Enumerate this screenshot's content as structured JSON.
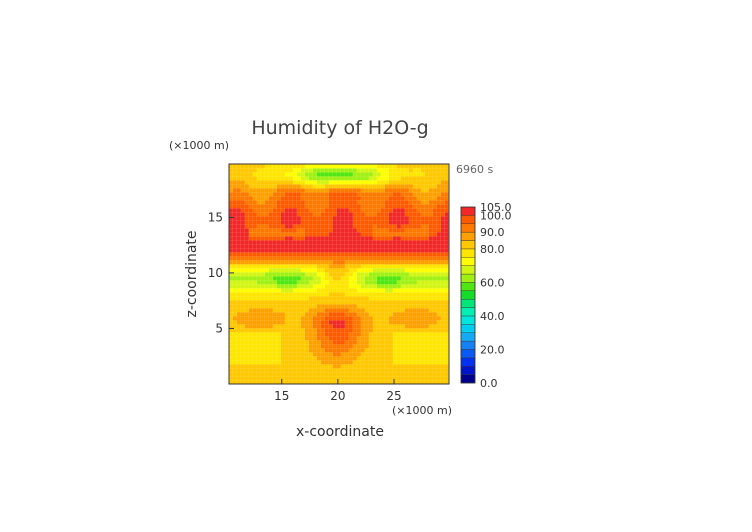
{
  "chart_data": {
    "type": "heatmap",
    "title": "Humidity of H2O-g",
    "time_label": "6960 s",
    "x_axis": {
      "label": "x-coordinate",
      "unit": "(×1000 m)",
      "range": [
        10.3,
        29.9
      ],
      "ticks": [
        15,
        20,
        25
      ],
      "tick_labels": [
        "15",
        "20",
        "25"
      ]
    },
    "y_axis": {
      "label": "z-coordinate",
      "unit": "(×1000 m)",
      "range": [
        0.0,
        19.8
      ],
      "ticks": [
        5,
        10,
        15
      ],
      "tick_labels": [
        "5",
        "10",
        "15"
      ]
    },
    "colorbar": {
      "levels": [
        0,
        5,
        10,
        15,
        20,
        25,
        30,
        35,
        40,
        45,
        50,
        55,
        60,
        65,
        70,
        75,
        80,
        85,
        90,
        95,
        100,
        105
      ],
      "labels": [
        "105.0",
        "100.0",
        "90.0",
        "80.0",
        "60.0",
        "40.0",
        "20.0",
        "0.0"
      ],
      "label_values": [
        105,
        100,
        90,
        80,
        60,
        40,
        20,
        0
      ],
      "colors": [
        "#00008c",
        "#0014c8",
        "#0032f0",
        "#0a5af5",
        "#1482f5",
        "#14aaf5",
        "#00cdf0",
        "#00e6dc",
        "#00f0b4",
        "#00e678",
        "#14dc28",
        "#50e614",
        "#a0f014",
        "#d2f514",
        "#ffff00",
        "#ffe600",
        "#ffc800",
        "#ffa000",
        "#ff7800",
        "#ff5a00",
        "#f02828",
        "#ffa0aa"
      ]
    },
    "field_description_values": {
      "moist_low_layer_z": [
        0,
        8.5
      ],
      "moist_low_layer_value": 82,
      "dry_band_z": [
        8.5,
        11.5
      ],
      "dry_band_value": 63,
      "saturated_core_z": [
        11.5,
        17.5
      ],
      "saturated_core_value": 100,
      "upper_dry_band_z": [
        17.8,
        19.8
      ],
      "upper_dry_band_value": 70
    }
  }
}
